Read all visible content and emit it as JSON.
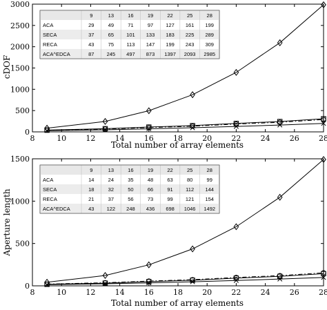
{
  "chart_data": [
    {
      "type": "line",
      "ylabel": "cDOF",
      "xlabel": "Total number of array elements",
      "xlim": [
        8,
        28
      ],
      "ylim": [
        0,
        3000
      ],
      "xticks": [
        "8",
        "10",
        "12",
        "14",
        "16",
        "18",
        "20",
        "22",
        "24",
        "26",
        "28"
      ],
      "yticks": [
        "0",
        "500",
        "1000",
        "1500",
        "2000",
        "2500",
        "3000"
      ],
      "x": [
        9,
        13,
        16,
        19,
        22,
        25,
        28
      ],
      "series": [
        {
          "name": "ACA",
          "values": [
            29,
            49,
            71,
            97,
            127,
            161,
            199
          ],
          "marker": "x",
          "dash": "solid"
        },
        {
          "name": "SECA",
          "values": [
            37,
            65,
            101,
            133,
            183,
            225,
            289
          ],
          "marker": "circle",
          "dash": "dashdot"
        },
        {
          "name": "RECA",
          "values": [
            43,
            75,
            113,
            147,
            199,
            243,
            309
          ],
          "marker": "square",
          "dash": "solid"
        },
        {
          "name": "ACA^EDCA",
          "values": [
            87,
            245,
            497,
            873,
            1397,
            2093,
            2985
          ],
          "marker": "diamond",
          "dash": "solid"
        }
      ],
      "table": {
        "header": [
          "",
          "9",
          "13",
          "16",
          "19",
          "22",
          "25",
          "28"
        ],
        "rows": [
          [
            "ACA",
            "29",
            "49",
            "71",
            "97",
            "127",
            "161",
            "199"
          ],
          [
            "SECA",
            "37",
            "65",
            "101",
            "133",
            "183",
            "225",
            "289"
          ],
          [
            "RECA",
            "43",
            "75",
            "113",
            "147",
            "199",
            "243",
            "309"
          ],
          [
            "ACA^EDCA",
            "87",
            "245",
            "497",
            "873",
            "1397",
            "2093",
            "2985"
          ]
        ]
      }
    },
    {
      "type": "line",
      "ylabel": "Aperture length",
      "xlabel": "Total number of array elements",
      "xlim": [
        8,
        28
      ],
      "ylim": [
        0,
        1500
      ],
      "xticks": [
        "8",
        "10",
        "12",
        "14",
        "16",
        "18",
        "20",
        "22",
        "24",
        "26",
        "28"
      ],
      "yticks": [
        "0",
        "500",
        "1000",
        "1500"
      ],
      "x": [
        9,
        13,
        16,
        19,
        22,
        25,
        28
      ],
      "series": [
        {
          "name": "ACA",
          "values": [
            14,
            24,
            35,
            48,
            63,
            80,
            99
          ],
          "marker": "x",
          "dash": "solid"
        },
        {
          "name": "SECA",
          "values": [
            18,
            32,
            50,
            66,
            91,
            112,
            144
          ],
          "marker": "square",
          "dash": "solid"
        },
        {
          "name": "RECA",
          "values": [
            21,
            37,
            56,
            73,
            99,
            121,
            154
          ],
          "marker": "circle",
          "dash": "dashdot"
        },
        {
          "name": "ACA^EDCA",
          "values": [
            43,
            122,
            248,
            436,
            698,
            1046,
            1492
          ],
          "marker": "diamond",
          "dash": "solid"
        }
      ],
      "table": {
        "header": [
          "",
          "9",
          "13",
          "16",
          "19",
          "22",
          "25",
          "28"
        ],
        "rows": [
          [
            "ACA",
            "14",
            "24",
            "35",
            "48",
            "63",
            "80",
            "99"
          ],
          [
            "SECA",
            "18",
            "32",
            "50",
            "66",
            "91",
            "112",
            "144"
          ],
          [
            "RECA",
            "21",
            "37",
            "56",
            "73",
            "99",
            "121",
            "154"
          ],
          [
            "ACA^EDCA",
            "43",
            "122",
            "248",
            "436",
            "698",
            "1046",
            "1492"
          ]
        ]
      }
    }
  ]
}
